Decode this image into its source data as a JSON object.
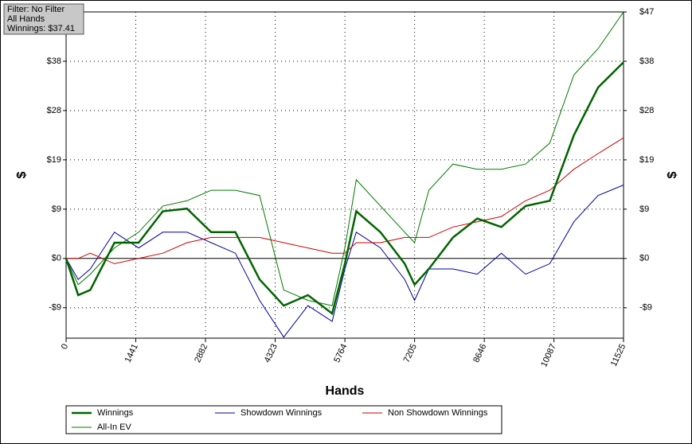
{
  "chart_data": {
    "type": "line",
    "info": [
      "Filter: No Filter",
      "All Hands",
      "Winnings: $37.41"
    ],
    "xlabel": "Hands",
    "ylabel": "$",
    "y2label": "$",
    "x": [
      0,
      250,
      500,
      1000,
      1500,
      2000,
      2500,
      3000,
      3500,
      4000,
      4500,
      5000,
      5500,
      5764,
      6000,
      6500,
      7000,
      7205,
      7500,
      8000,
      8500,
      9000,
      9500,
      10000,
      10500,
      11000,
      11525
    ],
    "xlim": [
      0,
      11525
    ],
    "xticks": [
      0,
      1441,
      2882,
      4323,
      5764,
      7205,
      8646,
      10087,
      11525
    ],
    "ylim": [
      -15.2,
      47
    ],
    "yticks": [
      {
        "value": -9.4,
        "label": "-$9"
      },
      {
        "value": 0,
        "label": "$0"
      },
      {
        "value": 9.4,
        "label": "$9"
      },
      {
        "value": 18.8,
        "label": "$19"
      },
      {
        "value": 28.2,
        "label": "$28"
      },
      {
        "value": 37.6,
        "label": "$38"
      }
    ],
    "y2lim": [
      -15.2,
      47
    ],
    "y2ticks": [
      {
        "value": -9.4,
        "label": "-$9"
      },
      {
        "value": 0,
        "label": "$0"
      },
      {
        "value": 9.4,
        "label": "$9"
      },
      {
        "value": 18.8,
        "label": "$19"
      },
      {
        "value": 28.2,
        "label": "$28"
      },
      {
        "value": 37.6,
        "label": "$38"
      },
      {
        "value": 47,
        "label": "$47"
      }
    ],
    "grid": true,
    "series": [
      {
        "name": "Winnings",
        "color": "#006400",
        "width": 2.5,
        "values": [
          0,
          -7,
          -6,
          3,
          3,
          9,
          9.5,
          5,
          5,
          -4,
          -9,
          -7,
          -10.5,
          -1,
          9,
          5,
          -1,
          -5,
          -2,
          4,
          7.6,
          6,
          10,
          11,
          23.5,
          32.6,
          37.41
        ]
      },
      {
        "name": "Showdown Winnings",
        "color": "#0000a0",
        "width": 1,
        "values": [
          0,
          -4,
          -2,
          5,
          2,
          5,
          5,
          3,
          1,
          -8,
          -15,
          -9,
          -12,
          -2,
          5,
          2,
          -4,
          -8,
          -2,
          -2,
          -3,
          1,
          -3,
          -1,
          7,
          12,
          14
        ]
      },
      {
        "name": "Non Showdown Winnings",
        "color": "#d00000",
        "width": 1,
        "values": [
          0,
          0,
          1,
          -1,
          0,
          1,
          3,
          4,
          4,
          4,
          3,
          2,
          1,
          1,
          3,
          3,
          4,
          4,
          4,
          6,
          7,
          8,
          11,
          13,
          17,
          20,
          23
        ]
      },
      {
        "name": "All-In EV",
        "color": "#007a00",
        "width": 1,
        "values": [
          0,
          -5,
          -3,
          2,
          5,
          10,
          11,
          13,
          13,
          12,
          -6,
          -8,
          -9,
          2,
          15,
          10,
          5,
          3,
          13,
          18,
          17,
          17,
          18,
          22,
          35,
          40,
          47
        ]
      }
    ]
  }
}
